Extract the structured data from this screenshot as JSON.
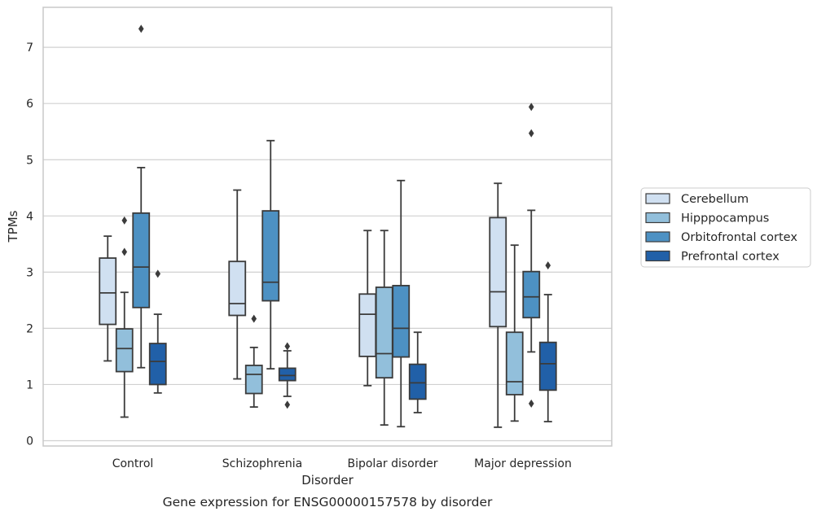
{
  "caption": "Gene expression for ENSG00000157578 by disorder",
  "colors": {
    "Cerebellum": "#d0e0f1",
    "Hipppocampus": "#92bfdb",
    "Orbitofrontal cortex": "#4d91c3",
    "Prefrontal cortex": "#2160a8",
    "edge": "#3b3b3b",
    "grid": "#d0d0d0",
    "frame": "#c8c8c8"
  },
  "chart_data": {
    "type": "box",
    "xlabel": "Disorder",
    "ylabel": "TPMs",
    "ylim": [
      -0.1,
      7.7
    ],
    "yticks": [
      0,
      1,
      2,
      3,
      4,
      5,
      6,
      7
    ],
    "grid": true,
    "legend_position": "right",
    "categories": [
      "Control",
      "Schizophrenia",
      "Bipolar disorder",
      "Major depression"
    ],
    "series": [
      {
        "name": "Cerebellum",
        "boxes": [
          {
            "whislo": 1.42,
            "q1": 2.07,
            "med": 2.63,
            "q3": 3.25,
            "whishi": 3.64,
            "fliers": []
          },
          {
            "whislo": 1.1,
            "q1": 2.23,
            "med": 2.44,
            "q3": 3.19,
            "whishi": 4.46,
            "fliers": []
          },
          {
            "whislo": 0.98,
            "q1": 1.5,
            "med": 2.25,
            "q3": 2.61,
            "whishi": 3.74,
            "fliers": []
          },
          {
            "whislo": 0.24,
            "q1": 2.03,
            "med": 2.65,
            "q3": 3.97,
            "whishi": 4.58,
            "fliers": []
          }
        ]
      },
      {
        "name": "Hipppocampus",
        "boxes": [
          {
            "whislo": 0.42,
            "q1": 1.23,
            "med": 1.64,
            "q3": 1.99,
            "whishi": 2.64,
            "fliers": [
              3.92,
              3.36
            ]
          },
          {
            "whislo": 0.6,
            "q1": 0.84,
            "med": 1.18,
            "q3": 1.34,
            "whishi": 1.66,
            "fliers": [
              2.17
            ]
          },
          {
            "whislo": 0.28,
            "q1": 1.12,
            "med": 1.55,
            "q3": 2.73,
            "whishi": 3.74,
            "fliers": []
          },
          {
            "whislo": 0.35,
            "q1": 0.82,
            "med": 1.05,
            "q3": 1.93,
            "whishi": 3.48,
            "fliers": []
          }
        ]
      },
      {
        "name": "Orbitofrontal cortex",
        "boxes": [
          {
            "whislo": 1.3,
            "q1": 2.37,
            "med": 3.09,
            "q3": 4.05,
            "whishi": 4.86,
            "fliers": [
              7.33
            ]
          },
          {
            "whislo": 1.28,
            "q1": 2.49,
            "med": 2.82,
            "q3": 4.09,
            "whishi": 5.34,
            "fliers": []
          },
          {
            "whislo": 0.25,
            "q1": 1.49,
            "med": 2.0,
            "q3": 2.76,
            "whishi": 4.63,
            "fliers": []
          },
          {
            "whislo": 1.58,
            "q1": 2.19,
            "med": 2.56,
            "q3": 3.01,
            "whishi": 4.1,
            "fliers": [
              5.94,
              5.47,
              0.66
            ]
          }
        ]
      },
      {
        "name": "Prefrontal cortex",
        "boxes": [
          {
            "whislo": 0.85,
            "q1": 1.0,
            "med": 1.41,
            "q3": 1.73,
            "whishi": 2.25,
            "fliers": [
              2.97
            ]
          },
          {
            "whislo": 0.79,
            "q1": 1.07,
            "med": 1.16,
            "q3": 1.29,
            "whishi": 1.6,
            "fliers": [
              1.68,
              0.64
            ]
          },
          {
            "whislo": 0.5,
            "q1": 0.74,
            "med": 1.03,
            "q3": 1.36,
            "whishi": 1.93,
            "fliers": []
          },
          {
            "whislo": 0.34,
            "q1": 0.9,
            "med": 1.37,
            "q3": 1.75,
            "whishi": 2.6,
            "fliers": [
              3.12
            ]
          }
        ]
      }
    ]
  }
}
